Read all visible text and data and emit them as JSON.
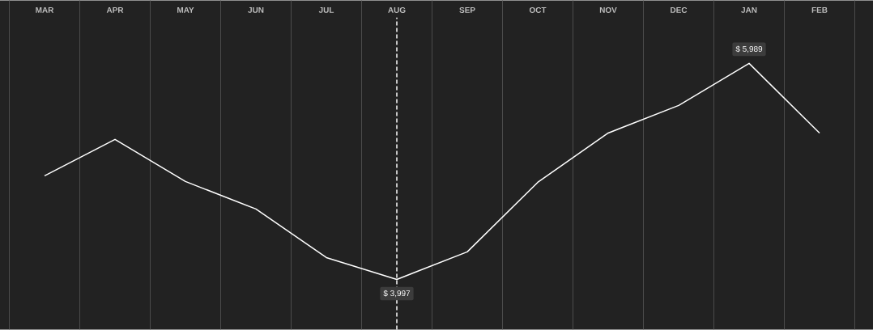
{
  "chart_data": {
    "type": "line",
    "categories": [
      "MAR",
      "APR",
      "MAY",
      "JUN",
      "JUL",
      "AUG",
      "SEP",
      "OCT",
      "NOV",
      "DEC",
      "JAN",
      "FEB"
    ],
    "series": [
      {
        "color": "#ffffff",
        "values": [
          4952,
          5288,
          4900,
          4646,
          4198,
          3997,
          4251,
          4892,
          5347,
          5601,
          5989,
          5347
        ],
        "value_labels": [
          null,
          null,
          null,
          null,
          null,
          "$ 3,997",
          null,
          null,
          null,
          null,
          "$ 5,989",
          null
        ]
      }
    ],
    "ref_lines": [
      {
        "axis": "x",
        "value": "AUG",
        "color": "#ffffff",
        "line_style": "dashed"
      }
    ],
    "grid": "x",
    "marker": "none",
    "line_style": "solid"
  }
}
